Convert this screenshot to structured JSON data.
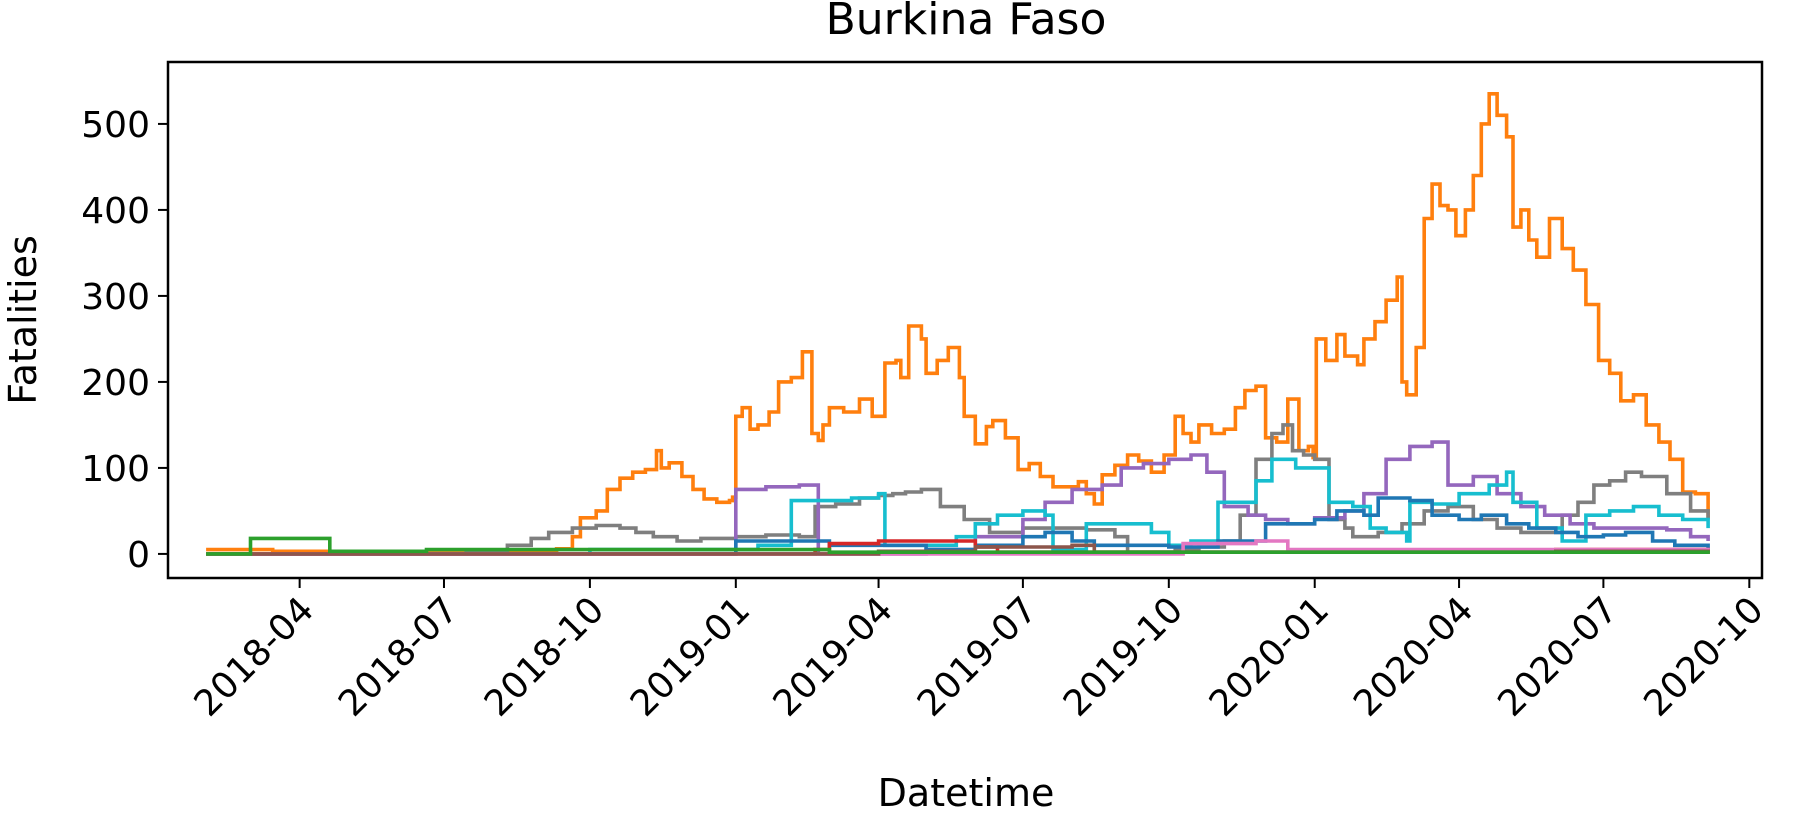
{
  "chart_data": {
    "type": "line",
    "title": "Burkina Faso",
    "xlabel": "Datetime",
    "ylabel": "Fatalities",
    "xlim": [
      "2018-01-08",
      "2020-10-09"
    ],
    "ylim": [
      -28,
      572
    ],
    "x_ticks": [
      "2018-04",
      "2018-07",
      "2018-10",
      "2019-01",
      "2019-04",
      "2019-07",
      "2019-10",
      "2020-01",
      "2020-04",
      "2020-07",
      "2020-10"
    ],
    "x_tick_dates": [
      "2018-04-01",
      "2018-07-01",
      "2018-10-01",
      "2019-01-01",
      "2019-04-01",
      "2019-07-01",
      "2019-10-01",
      "2020-01-01",
      "2020-04-01",
      "2020-07-01",
      "2020-10-01"
    ],
    "y_ticks": [
      0,
      100,
      200,
      300,
      400,
      500
    ],
    "grid": false,
    "legend": "none",
    "series": [
      {
        "color": "#ff7f0e",
        "x": [
          "2018-02-01",
          "2018-03-15",
          "2018-05-01",
          "2018-06-15",
          "2018-08-01",
          "2018-09-10",
          "2018-09-20",
          "2018-09-25",
          "2018-10-05",
          "2018-10-12",
          "2018-10-20",
          "2018-10-28",
          "2018-11-05",
          "2018-11-12",
          "2018-11-15",
          "2018-11-20",
          "2018-11-28",
          "2018-12-05",
          "2018-12-12",
          "2018-12-20",
          "2018-12-28",
          "2018-12-30",
          "2019-01-01",
          "2019-01-05",
          "2019-01-10",
          "2019-01-15",
          "2019-01-22",
          "2019-01-28",
          "2019-02-05",
          "2019-02-12",
          "2019-02-18",
          "2019-02-22",
          "2019-02-25",
          "2019-03-01",
          "2019-03-10",
          "2019-03-20",
          "2019-03-28",
          "2019-04-05",
          "2019-04-12",
          "2019-04-15",
          "2019-04-20",
          "2019-04-28",
          "2019-05-01",
          "2019-05-08",
          "2019-05-15",
          "2019-05-22",
          "2019-05-25",
          "2019-06-01",
          "2019-06-08",
          "2019-06-12",
          "2019-06-20",
          "2019-06-28",
          "2019-07-05",
          "2019-07-12",
          "2019-07-20",
          "2019-07-28",
          "2019-08-05",
          "2019-08-10",
          "2019-08-15",
          "2019-08-20",
          "2019-08-28",
          "2019-09-05",
          "2019-09-12",
          "2019-09-20",
          "2019-09-28",
          "2019-10-05",
          "2019-10-10",
          "2019-10-15",
          "2019-10-20",
          "2019-10-28",
          "2019-11-05",
          "2019-11-12",
          "2019-11-18",
          "2019-11-25",
          "2019-12-01",
          "2019-12-08",
          "2019-12-15",
          "2019-12-22",
          "2019-12-28",
          "2019-12-31",
          "2020-01-02",
          "2020-01-08",
          "2020-01-15",
          "2020-01-20",
          "2020-01-28",
          "2020-02-01",
          "2020-02-08",
          "2020-02-15",
          "2020-02-22",
          "2020-02-25",
          "2020-02-28",
          "2020-03-05",
          "2020-03-10",
          "2020-03-15",
          "2020-03-20",
          "2020-03-25",
          "2020-03-30",
          "2020-04-05",
          "2020-04-10",
          "2020-04-15",
          "2020-04-20",
          "2020-04-25",
          "2020-05-01",
          "2020-05-05",
          "2020-05-10",
          "2020-05-15",
          "2020-05-20",
          "2020-05-28",
          "2020-06-05",
          "2020-06-12",
          "2020-06-20",
          "2020-06-28",
          "2020-07-05",
          "2020-07-12",
          "2020-07-20",
          "2020-07-28",
          "2020-08-05",
          "2020-08-12",
          "2020-08-20",
          "2020-08-28",
          "2020-09-05"
        ],
        "values": [
          5,
          3,
          2,
          1,
          2,
          6,
          20,
          42,
          50,
          75,
          88,
          95,
          98,
          120,
          100,
          106,
          90,
          75,
          64,
          60,
          62,
          66,
          160,
          170,
          145,
          150,
          165,
          200,
          205,
          235,
          140,
          132,
          150,
          170,
          165,
          180,
          160,
          222,
          225,
          205,
          265,
          250,
          210,
          225,
          240,
          205,
          160,
          128,
          148,
          155,
          135,
          98,
          105,
          90,
          78,
          78,
          84,
          70,
          58,
          92,
          103,
          115,
          108,
          95,
          115,
          160,
          140,
          130,
          150,
          140,
          145,
          170,
          190,
          195,
          135,
          130,
          180,
          120,
          125,
          112,
          250,
          225,
          255,
          230,
          220,
          250,
          270,
          295,
          322,
          200,
          185,
          240,
          390,
          430,
          405,
          400,
          370,
          400,
          440,
          500,
          535,
          510,
          485,
          380,
          400,
          365,
          345,
          390,
          355,
          330,
          290,
          225,
          210,
          178,
          185,
          150,
          130,
          110,
          72,
          70,
          42
        ]
      },
      {
        "color": "#7f7f7f",
        "x": [
          "2018-02-01",
          "2018-07-15",
          "2018-08-10",
          "2018-08-25",
          "2018-09-05",
          "2018-09-20",
          "2018-10-05",
          "2018-10-20",
          "2018-10-30",
          "2018-11-10",
          "2018-11-25",
          "2018-12-10",
          "2019-01-01",
          "2019-01-20",
          "2019-02-10",
          "2019-02-20",
          "2019-03-05",
          "2019-03-20",
          "2019-04-01",
          "2019-04-10",
          "2019-04-18",
          "2019-04-28",
          "2019-05-10",
          "2019-05-25",
          "2019-06-10",
          "2019-07-01",
          "2019-07-20",
          "2019-08-10",
          "2019-08-28",
          "2019-09-05",
          "2019-09-20",
          "2019-10-05",
          "2019-10-20",
          "2019-11-05",
          "2019-11-15",
          "2019-11-25",
          "2019-12-05",
          "2019-12-12",
          "2019-12-18",
          "2019-12-25",
          "2020-01-01",
          "2020-01-10",
          "2020-01-20",
          "2020-01-25",
          "2020-02-10",
          "2020-02-25",
          "2020-03-10",
          "2020-03-25",
          "2020-04-10",
          "2020-04-25",
          "2020-05-10",
          "2020-05-25",
          "2020-06-05",
          "2020-06-15",
          "2020-06-25",
          "2020-07-05",
          "2020-07-15",
          "2020-07-25",
          "2020-08-10",
          "2020-08-25",
          "2020-09-05"
        ],
        "values": [
          0,
          2,
          10,
          18,
          25,
          30,
          33,
          30,
          25,
          20,
          15,
          18,
          20,
          22,
          20,
          55,
          58,
          65,
          68,
          70,
          72,
          75,
          55,
          40,
          25,
          30,
          30,
          28,
          20,
          2,
          2,
          5,
          8,
          15,
          45,
          110,
          140,
          150,
          120,
          115,
          110,
          40,
          30,
          20,
          25,
          35,
          50,
          55,
          40,
          30,
          25,
          25,
          45,
          60,
          80,
          85,
          95,
          90,
          70,
          50,
          40
        ]
      },
      {
        "color": "#9467bd",
        "x": [
          "2018-02-01",
          "2018-12-20",
          "2019-01-01",
          "2019-01-20",
          "2019-02-10",
          "2019-02-20",
          "2019-02-22",
          "2019-05-01",
          "2019-06-01",
          "2019-07-01",
          "2019-07-15",
          "2019-08-01",
          "2019-08-20",
          "2019-09-01",
          "2019-09-15",
          "2019-10-01",
          "2019-10-15",
          "2019-10-25",
          "2019-11-05",
          "2019-11-20",
          "2019-12-01",
          "2019-12-15",
          "2020-01-01",
          "2020-01-20",
          "2020-02-01",
          "2020-02-15",
          "2020-03-01",
          "2020-03-15",
          "2020-03-25",
          "2020-04-10",
          "2020-04-25",
          "2020-05-10",
          "2020-05-25",
          "2020-06-10",
          "2020-06-25",
          "2020-07-10",
          "2020-07-25",
          "2020-08-10",
          "2020-08-25",
          "2020-09-05"
        ],
        "values": [
          0,
          0,
          75,
          78,
          80,
          80,
          0,
          5,
          20,
          40,
          60,
          75,
          80,
          100,
          105,
          110,
          115,
          95,
          55,
          45,
          40,
          35,
          42,
          50,
          70,
          110,
          125,
          130,
          80,
          90,
          70,
          55,
          45,
          35,
          30,
          30,
          30,
          28,
          20,
          15
        ]
      },
      {
        "color": "#17becf",
        "x": [
          "2018-02-01",
          "2018-10-01",
          "2019-01-15",
          "2019-02-01",
          "2019-02-05",
          "2019-03-01",
          "2019-03-15",
          "2019-04-01",
          "2019-04-05",
          "2019-05-10",
          "2019-05-20",
          "2019-06-01",
          "2019-06-15",
          "2019-07-01",
          "2019-07-15",
          "2019-07-20",
          "2019-08-10",
          "2019-09-01",
          "2019-09-20",
          "2019-10-01",
          "2019-10-15",
          "2019-11-01",
          "2019-11-15",
          "2019-11-25",
          "2019-12-05",
          "2019-12-20",
          "2020-01-10",
          "2020-01-25",
          "2020-02-05",
          "2020-02-15",
          "2020-02-28",
          "2020-03-01",
          "2020-03-15",
          "2020-04-01",
          "2020-04-20",
          "2020-05-01",
          "2020-05-05",
          "2020-05-20",
          "2020-06-05",
          "2020-06-20",
          "2020-07-05",
          "2020-07-20",
          "2020-08-05",
          "2020-08-20",
          "2020-09-05"
        ],
        "values": [
          0,
          5,
          10,
          10,
          62,
          62,
          65,
          70,
          10,
          10,
          20,
          35,
          45,
          50,
          45,
          5,
          35,
          35,
          25,
          10,
          15,
          60,
          60,
          85,
          110,
          100,
          60,
          55,
          30,
          25,
          15,
          60,
          58,
          70,
          80,
          95,
          60,
          30,
          15,
          45,
          50,
          55,
          45,
          40,
          30
        ]
      },
      {
        "color": "#1f77b4",
        "x": [
          "2018-02-01",
          "2018-12-20",
          "2019-01-01",
          "2019-02-15",
          "2019-03-01",
          "2019-05-01",
          "2019-06-01",
          "2019-07-01",
          "2019-07-15",
          "2019-08-01",
          "2019-08-15",
          "2019-09-01",
          "2019-10-01",
          "2019-11-01",
          "2019-12-01",
          "2020-01-01",
          "2020-01-15",
          "2020-02-01",
          "2020-02-10",
          "2020-03-01",
          "2020-03-15",
          "2020-04-01",
          "2020-04-15",
          "2020-05-01",
          "2020-05-15",
          "2020-06-01",
          "2020-06-15",
          "2020-07-01",
          "2020-07-15",
          "2020-08-01",
          "2020-08-15",
          "2020-09-05"
        ],
        "values": [
          0,
          0,
          15,
          15,
          10,
          5,
          10,
          20,
          25,
          15,
          10,
          10,
          8,
          15,
          35,
          40,
          50,
          45,
          65,
          62,
          45,
          40,
          45,
          35,
          30,
          25,
          20,
          22,
          25,
          15,
          10,
          5
        ]
      },
      {
        "color": "#d62728",
        "x": [
          "2018-02-01",
          "2019-02-20",
          "2019-03-01",
          "2019-04-01",
          "2019-05-01",
          "2019-06-01",
          "2019-06-15",
          "2020-01-01",
          "2020-06-01",
          "2020-09-05"
        ],
        "values": [
          0,
          5,
          12,
          15,
          15,
          8,
          2,
          2,
          5,
          2
        ]
      },
      {
        "color": "#e377c2",
        "x": [
          "2018-02-01",
          "2019-10-01",
          "2019-10-10",
          "2019-11-15",
          "2019-11-25",
          "2019-12-15",
          "2020-09-05"
        ],
        "values": [
          0,
          0,
          12,
          12,
          15,
          5,
          0
        ]
      },
      {
        "color": "#8c564b",
        "x": [
          "2018-02-01",
          "2019-04-01",
          "2019-06-01",
          "2019-08-01",
          "2019-08-15",
          "2020-06-01",
          "2020-09-05"
        ],
        "values": [
          0,
          3,
          8,
          10,
          2,
          3,
          0
        ]
      },
      {
        "color": "#2ca02c",
        "x": [
          "2018-02-01",
          "2018-02-20",
          "2018-03-01",
          "2018-04-01",
          "2018-04-10",
          "2018-04-20",
          "2018-06-10",
          "2018-06-20",
          "2019-03-01",
          "2019-09-01",
          "2020-09-05"
        ],
        "values": [
          0,
          0,
          18,
          18,
          18,
          3,
          3,
          5,
          2,
          2,
          0
        ]
      }
    ]
  }
}
